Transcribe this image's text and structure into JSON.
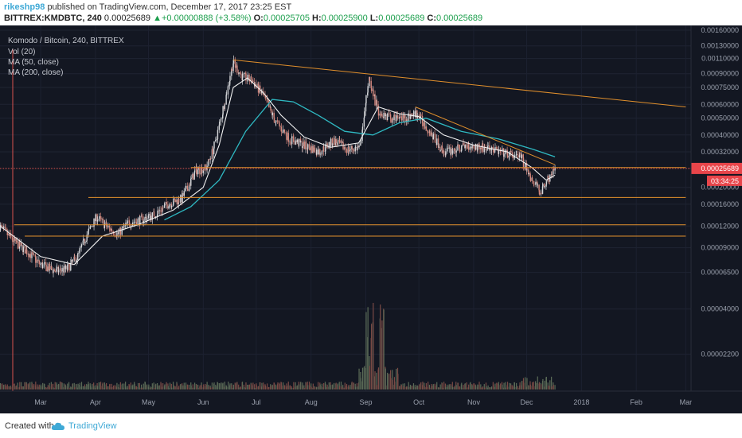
{
  "header": {
    "user": "rikeshp98",
    "published": "published on TradingView.com, December 17, 2017 23:25 EST",
    "symbol": "BITTREX:KMDBTC, 240",
    "last": "0.00025689",
    "change_arrow": "▲",
    "change": "+0.00000888 (+3.58%)",
    "o_label": "O:",
    "o": "0.00025705",
    "h_label": "H:",
    "h": "0.00025900",
    "l_label": "L:",
    "l": "0.00025689",
    "c_label": "C:",
    "c": "0.00025689"
  },
  "legend": {
    "title": "Komodo / Bitcoin, 240, BITTREX",
    "vol": "Vol (20)",
    "ma50": "MA (50, close)",
    "ma200": "MA (200, close)"
  },
  "footer": {
    "created": "Created with",
    "brand": "TradingView"
  },
  "colors": {
    "background": "#131722",
    "up": "#d7d9dc",
    "down": "#d98a7f",
    "ma50": "#f2f2f2",
    "ma200": "#2fb9c2",
    "trendline": "#e08f2c",
    "price_line": "#d9534f",
    "price_label": "#e8454a"
  },
  "chart_data": {
    "type": "candlestick",
    "y_ticks": [
      "0.00160000",
      "0.00130000",
      "0.00110000",
      "0.00090000",
      "0.00075000",
      "0.00060000",
      "0.00050000",
      "0.00040000",
      "0.00032000",
      "0.00020000",
      "0.00016000",
      "0.00012000",
      "0.00009000",
      "0.00006500",
      "0.00004000",
      "0.00002200"
    ],
    "y_tick_values": [
      0.0016,
      0.0013,
      0.0011,
      0.0009,
      0.00075,
      0.0006,
      0.0005,
      0.0004,
      0.00032,
      0.0002,
      0.00016,
      0.00012,
      9e-05,
      6.5e-05,
      4e-05,
      2.2e-05
    ],
    "y_scale": "log",
    "x_ticks": [
      "Mar",
      "Apr",
      "May",
      "Jun",
      "Jul",
      "Aug",
      "Sep",
      "Oct",
      "Nov",
      "Dec",
      "2018",
      "Feb",
      "Mar"
    ],
    "x_tick_dates": [
      "2017-03-01",
      "2017-04-01",
      "2017-05-01",
      "2017-06-01",
      "2017-07-01",
      "2017-08-01",
      "2017-09-01",
      "2017-10-01",
      "2017-11-01",
      "2017-12-01",
      "2018-01-01",
      "2018-02-01",
      "2018-03-01"
    ],
    "x_range": [
      "2017-02-06",
      "2018-03-04"
    ],
    "last_price": "0.00025689",
    "last_price_value": 0.00025689,
    "countdown": "03:34:25",
    "price_path": [
      [
        "2017-02-06",
        0.00012
      ],
      [
        "2017-02-14",
        9.8e-05
      ],
      [
        "2017-02-22",
        8.5e-05
      ],
      [
        "2017-03-01",
        7.2e-05
      ],
      [
        "2017-03-10",
        6.6e-05
      ],
      [
        "2017-03-16",
        6.8e-05
      ],
      [
        "2017-03-22",
        8e-05
      ],
      [
        "2017-03-28",
        0.00011
      ],
      [
        "2017-04-02",
        0.000135
      ],
      [
        "2017-04-08",
        0.000118
      ],
      [
        "2017-04-14",
        0.000108
      ],
      [
        "2017-04-20",
        0.000125
      ],
      [
        "2017-04-27",
        0.00013
      ],
      [
        "2017-05-05",
        0.00014
      ],
      [
        "2017-05-12",
        0.00016
      ],
      [
        "2017-05-20",
        0.000172
      ],
      [
        "2017-05-28",
        0.00025
      ],
      [
        "2017-06-03",
        0.00026
      ],
      [
        "2017-06-08",
        0.00036
      ],
      [
        "2017-06-13",
        0.0006
      ],
      [
        "2017-06-18",
        0.00105
      ],
      [
        "2017-06-23",
        0.00087
      ],
      [
        "2017-06-29",
        0.00082
      ],
      [
        "2017-07-05",
        0.00068
      ],
      [
        "2017-07-12",
        0.00048
      ],
      [
        "2017-07-20",
        0.00038
      ],
      [
        "2017-07-28",
        0.00035
      ],
      [
        "2017-08-06",
        0.00032
      ],
      [
        "2017-08-14",
        0.00037
      ],
      [
        "2017-08-22",
        0.00033
      ],
      [
        "2017-08-29",
        0.00034
      ],
      [
        "2017-09-03",
        0.00086
      ],
      [
        "2017-09-08",
        0.00055
      ],
      [
        "2017-09-15",
        0.0005
      ],
      [
        "2017-09-22",
        0.0005
      ],
      [
        "2017-09-30",
        0.00053
      ],
      [
        "2017-10-08",
        0.00041
      ],
      [
        "2017-10-15",
        0.00032
      ],
      [
        "2017-10-22",
        0.00033
      ],
      [
        "2017-10-29",
        0.00035
      ],
      [
        "2017-11-05",
        0.00034
      ],
      [
        "2017-11-12",
        0.00033
      ],
      [
        "2017-11-20",
        0.00031
      ],
      [
        "2017-11-28",
        0.0003
      ],
      [
        "2017-12-04",
        0.00022
      ],
      [
        "2017-12-09",
        0.00019
      ],
      [
        "2017-12-13",
        0.00022
      ],
      [
        "2017-12-17",
        0.00025689
      ]
    ],
    "ma50_path": [
      [
        "2017-02-06",
        0.00012
      ],
      [
        "2017-03-01",
        8e-05
      ],
      [
        "2017-03-20",
        7.2e-05
      ],
      [
        "2017-04-05",
        0.000105
      ],
      [
        "2017-04-25",
        0.000122
      ],
      [
        "2017-05-15",
        0.000148
      ],
      [
        "2017-06-01",
        0.0002
      ],
      [
        "2017-06-10",
        0.00035
      ],
      [
        "2017-06-18",
        0.00075
      ],
      [
        "2017-06-26",
        0.00085
      ],
      [
        "2017-07-05",
        0.0007
      ],
      [
        "2017-07-15",
        0.00052
      ],
      [
        "2017-07-28",
        0.00039
      ],
      [
        "2017-08-12",
        0.00034
      ],
      [
        "2017-08-28",
        0.00036
      ],
      [
        "2017-09-08",
        0.00058
      ],
      [
        "2017-09-20",
        0.00053
      ],
      [
        "2017-10-01",
        0.00051
      ],
      [
        "2017-10-15",
        0.0004
      ],
      [
        "2017-11-01",
        0.00035
      ],
      [
        "2017-11-20",
        0.00032
      ],
      [
        "2017-12-04",
        0.00026
      ],
      [
        "2017-12-12",
        0.00022
      ],
      [
        "2017-12-17",
        0.000235
      ]
    ],
    "ma200_path": [
      [
        "2017-05-10",
        0.00013
      ],
      [
        "2017-05-25",
        0.000155
      ],
      [
        "2017-06-10",
        0.00022
      ],
      [
        "2017-06-25",
        0.00042
      ],
      [
        "2017-07-10",
        0.00064
      ],
      [
        "2017-07-22",
        0.00062
      ],
      [
        "2017-08-05",
        0.00052
      ],
      [
        "2017-08-20",
        0.00042
      ],
      [
        "2017-09-05",
        0.0004
      ],
      [
        "2017-09-20",
        0.00047
      ],
      [
        "2017-10-05",
        0.0005
      ],
      [
        "2017-10-25",
        0.00042
      ],
      [
        "2017-11-15",
        0.00038
      ],
      [
        "2017-12-05",
        0.00033
      ],
      [
        "2017-12-17",
        0.0003
      ]
    ],
    "trendlines": [
      {
        "from": [
          "2017-06-18",
          0.00108
        ],
        "to": [
          "2018-03-01",
          0.00058
        ]
      },
      {
        "from": [
          "2017-09-29",
          0.00058
        ],
        "to": [
          "2017-12-17",
          0.00027
        ]
      }
    ],
    "horizontal_lines": [
      {
        "value": 0.00026,
        "from": "2017-05-25",
        "to": "2018-03-01"
      },
      {
        "value": 0.000175,
        "from": "2017-03-28",
        "to": "2018-03-01"
      },
      {
        "value": 0.000122,
        "from": "2017-02-14",
        "to": "2018-03-01"
      },
      {
        "value": 0.000105,
        "from": "2017-02-20",
        "to": "2018-03-01"
      }
    ],
    "volume_spike_dates": [
      "2017-09-03",
      "2017-09-04",
      "2017-09-10"
    ]
  }
}
